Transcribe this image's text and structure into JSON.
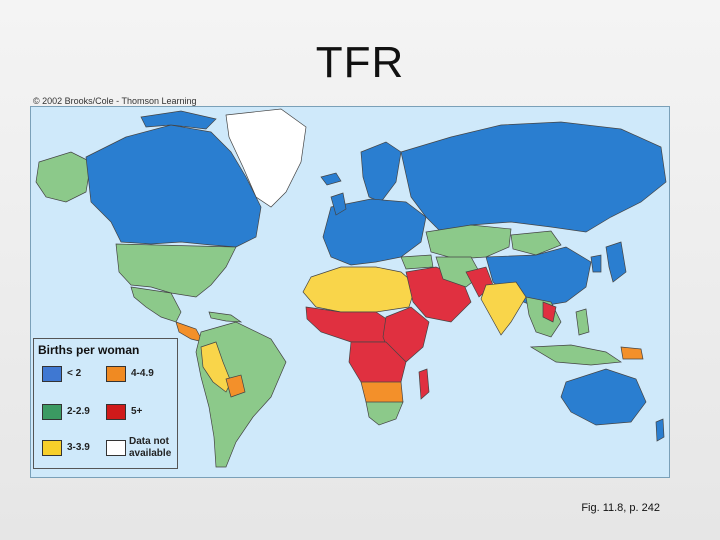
{
  "slide": {
    "title": "TFR",
    "copyright": "© 2002 Brooks/Cole - Thomson Learning",
    "caption": "Fig. 11.8, p. 242"
  },
  "legend": {
    "title": "Births per woman",
    "items": [
      {
        "label": "< 2",
        "color": "#3f78d2"
      },
      {
        "label": "2-2.9",
        "color": "#3b9a62"
      },
      {
        "label": "3-3.9",
        "color": "#f7cf2a"
      },
      {
        "label": "4-4.9",
        "color": "#f08a22"
      },
      {
        "label": "5+",
        "color": "#cf1a1a"
      },
      {
        "label": "Data not available",
        "color": "#ffffff"
      }
    ]
  },
  "colors": {
    "ocean": "#cfe9fa",
    "low": "#2a7ed0",
    "green": "#8cc98a",
    "yellow": "#f9d54a",
    "orange": "#f3902a",
    "red": "#e03040",
    "none": "#ffffff"
  }
}
